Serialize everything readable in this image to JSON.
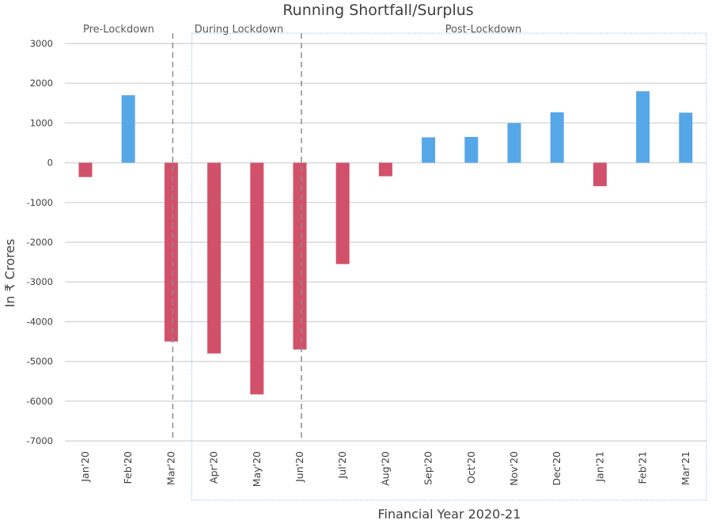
{
  "chart_data": {
    "type": "bar",
    "title": "Running Shortfall/Surplus",
    "xlabel": "Financial Year 2020-21",
    "ylabel": "In ₹ Crores",
    "ylim": [
      -7000,
      3000
    ],
    "yticks": [
      3000,
      2000,
      1000,
      0,
      -1000,
      -2000,
      -3000,
      -4000,
      -5000,
      -6000,
      -7000
    ],
    "ytick_labels": [
      "3000",
      "2000",
      "1000",
      "0",
      "-1000",
      "-2000",
      "-3000",
      "-4000",
      "-5000",
      "-6000",
      "-7000"
    ],
    "grid": true,
    "categories": [
      "Jan'20",
      "Feb'20",
      "Mar'20",
      "Apr'20",
      "May'20",
      "Jun'20",
      "Jul'20",
      "Aug'20",
      "Sep'20",
      "Oct'20",
      "Nov'20",
      "Dec'20",
      "Jan'21",
      "Feb'21",
      "Mar'21"
    ],
    "values": [
      -360,
      1700,
      -4500,
      -4800,
      -5830,
      -4700,
      -2550,
      -340,
      640,
      650,
      1000,
      1270,
      -590,
      1800,
      1260
    ],
    "colors": {
      "positive": "#56A7E8",
      "negative": "#D2516A",
      "grid": "#d9d9d9",
      "divider": "#8c8c8c",
      "region_border": "#9cc7e3"
    },
    "annotations": {
      "phases": [
        {
          "label": "Pre-Lockdown",
          "category": "Feb'20"
        },
        {
          "label": "During Lockdown",
          "category": "May'20"
        },
        {
          "label": "Post-Lockdown",
          "category": "Nov'20"
        }
      ],
      "dividers_after_category": [
        "Mar'20",
        "Jun'20"
      ],
      "dashed_divider_categories": [
        "Mar'20",
        "Jun'20"
      ],
      "region_box": {
        "from": "Apr'20",
        "to": "Mar'21"
      }
    }
  }
}
